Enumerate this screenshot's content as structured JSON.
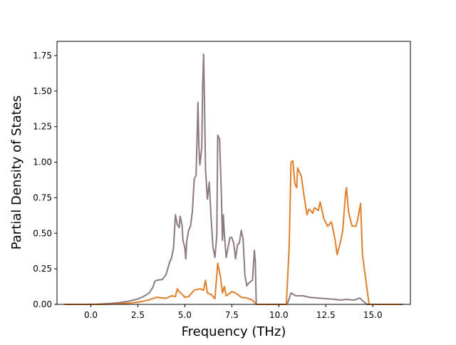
{
  "chart_data": {
    "type": "line",
    "xlabel": "Frequency (THz)",
    "ylabel": "Partial Density of States",
    "xlim": [
      -1.8,
      17.0
    ],
    "ylim": [
      0.0,
      1.85
    ],
    "x_ticks": [
      0.0,
      2.5,
      5.0,
      7.5,
      10.0,
      12.5,
      15.0
    ],
    "x_tick_labels": [
      "0.0",
      "2.5",
      "5.0",
      "7.5",
      "10.0",
      "12.5",
      "15.0"
    ],
    "y_ticks": [
      0.0,
      0.25,
      0.5,
      0.75,
      1.0,
      1.25,
      1.5,
      1.75
    ],
    "y_tick_labels": [
      "0.00",
      "0.25",
      "0.50",
      "0.75",
      "1.00",
      "1.25",
      "1.50",
      "1.75"
    ],
    "grid": false,
    "legend": "none",
    "series": [
      {
        "color": "#8c7a7f",
        "points": [
          [
            -1.4,
            0.0
          ],
          [
            0.0,
            0.0
          ],
          [
            0.5,
            0.002
          ],
          [
            1.0,
            0.006
          ],
          [
            1.5,
            0.012
          ],
          [
            2.0,
            0.022
          ],
          [
            2.5,
            0.038
          ],
          [
            2.8,
            0.055
          ],
          [
            3.1,
            0.08
          ],
          [
            3.3,
            0.12
          ],
          [
            3.4,
            0.16
          ],
          [
            3.5,
            0.17
          ],
          [
            3.8,
            0.175
          ],
          [
            4.0,
            0.21
          ],
          [
            4.2,
            0.3
          ],
          [
            4.3,
            0.33
          ],
          [
            4.4,
            0.4
          ],
          [
            4.5,
            0.63
          ],
          [
            4.6,
            0.56
          ],
          [
            4.7,
            0.54
          ],
          [
            4.75,
            0.62
          ],
          [
            4.85,
            0.56
          ],
          [
            4.9,
            0.45
          ],
          [
            5.0,
            0.4
          ],
          [
            5.05,
            0.32
          ],
          [
            5.1,
            0.44
          ],
          [
            5.2,
            0.52
          ],
          [
            5.3,
            0.55
          ],
          [
            5.4,
            0.65
          ],
          [
            5.5,
            0.88
          ],
          [
            5.6,
            0.91
          ],
          [
            5.7,
            1.42
          ],
          [
            5.75,
            1.1
          ],
          [
            5.8,
            0.98
          ],
          [
            5.9,
            1.1
          ],
          [
            5.95,
            1.55
          ],
          [
            6.0,
            1.76
          ],
          [
            6.05,
            1.4
          ],
          [
            6.1,
            0.95
          ],
          [
            6.2,
            0.74
          ],
          [
            6.3,
            0.86
          ],
          [
            6.4,
            0.6
          ],
          [
            6.5,
            0.4
          ],
          [
            6.6,
            0.33
          ],
          [
            6.7,
            0.48
          ],
          [
            6.75,
            1.19
          ],
          [
            6.85,
            1.16
          ],
          [
            6.95,
            0.75
          ],
          [
            7.0,
            0.45
          ],
          [
            7.05,
            0.63
          ],
          [
            7.1,
            0.5
          ],
          [
            7.2,
            0.33
          ],
          [
            7.3,
            0.4
          ],
          [
            7.4,
            0.47
          ],
          [
            7.5,
            0.47
          ],
          [
            7.6,
            0.43
          ],
          [
            7.7,
            0.32
          ],
          [
            7.8,
            0.42
          ],
          [
            7.9,
            0.43
          ],
          [
            8.0,
            0.52
          ],
          [
            8.1,
            0.46
          ],
          [
            8.2,
            0.2
          ],
          [
            8.3,
            0.13
          ],
          [
            8.4,
            0.15
          ],
          [
            8.6,
            0.17
          ],
          [
            8.7,
            0.38
          ],
          [
            8.75,
            0.3
          ],
          [
            8.8,
            0.0
          ],
          [
            10.4,
            0.0
          ],
          [
            10.5,
            0.02
          ],
          [
            10.65,
            0.08
          ],
          [
            10.9,
            0.06
          ],
          [
            11.3,
            0.06
          ],
          [
            11.6,
            0.05
          ],
          [
            12.0,
            0.045
          ],
          [
            12.5,
            0.04
          ],
          [
            13.0,
            0.035
          ],
          [
            13.3,
            0.03
          ],
          [
            13.6,
            0.035
          ],
          [
            14.0,
            0.03
          ],
          [
            14.3,
            0.045
          ],
          [
            14.5,
            0.02
          ],
          [
            14.7,
            0.0
          ],
          [
            16.6,
            0.0
          ]
        ]
      },
      {
        "color": "#e07f2a",
        "points": [
          [
            -1.4,
            0.0
          ],
          [
            0.5,
            0.0
          ],
          [
            1.5,
            0.004
          ],
          [
            2.0,
            0.008
          ],
          [
            2.5,
            0.015
          ],
          [
            3.0,
            0.028
          ],
          [
            3.5,
            0.05
          ],
          [
            4.0,
            0.042
          ],
          [
            4.3,
            0.06
          ],
          [
            4.5,
            0.055
          ],
          [
            4.6,
            0.11
          ],
          [
            4.7,
            0.09
          ],
          [
            4.9,
            0.065
          ],
          [
            5.0,
            0.05
          ],
          [
            5.2,
            0.055
          ],
          [
            5.5,
            0.1
          ],
          [
            5.8,
            0.11
          ],
          [
            6.0,
            0.1
          ],
          [
            6.1,
            0.17
          ],
          [
            6.2,
            0.08
          ],
          [
            6.4,
            0.07
          ],
          [
            6.6,
            0.04
          ],
          [
            6.75,
            0.29
          ],
          [
            6.9,
            0.19
          ],
          [
            7.0,
            0.08
          ],
          [
            7.1,
            0.125
          ],
          [
            7.2,
            0.06
          ],
          [
            7.3,
            0.07
          ],
          [
            7.5,
            0.09
          ],
          [
            7.7,
            0.08
          ],
          [
            8.0,
            0.05
          ],
          [
            8.3,
            0.045
          ],
          [
            8.6,
            0.03
          ],
          [
            8.8,
            0.0
          ],
          [
            10.4,
            0.0
          ],
          [
            10.55,
            0.4
          ],
          [
            10.65,
            1.0
          ],
          [
            10.75,
            1.01
          ],
          [
            10.85,
            0.85
          ],
          [
            10.95,
            0.82
          ],
          [
            11.0,
            0.96
          ],
          [
            11.2,
            0.9
          ],
          [
            11.3,
            0.8
          ],
          [
            11.45,
            0.67
          ],
          [
            11.5,
            0.63
          ],
          [
            11.6,
            0.67
          ],
          [
            11.7,
            0.66
          ],
          [
            11.8,
            0.64
          ],
          [
            11.9,
            0.68
          ],
          [
            12.1,
            0.66
          ],
          [
            12.2,
            0.72
          ],
          [
            12.4,
            0.6
          ],
          [
            12.6,
            0.55
          ],
          [
            12.8,
            0.58
          ],
          [
            13.0,
            0.45
          ],
          [
            13.1,
            0.35
          ],
          [
            13.2,
            0.4
          ],
          [
            13.3,
            0.45
          ],
          [
            13.4,
            0.52
          ],
          [
            13.55,
            0.78
          ],
          [
            13.6,
            0.82
          ],
          [
            13.7,
            0.66
          ],
          [
            13.8,
            0.6
          ],
          [
            13.9,
            0.55
          ],
          [
            14.1,
            0.55
          ],
          [
            14.2,
            0.6
          ],
          [
            14.35,
            0.71
          ],
          [
            14.45,
            0.35
          ],
          [
            14.6,
            0.2
          ],
          [
            14.8,
            0.0
          ],
          [
            16.6,
            0.0
          ]
        ]
      }
    ]
  }
}
